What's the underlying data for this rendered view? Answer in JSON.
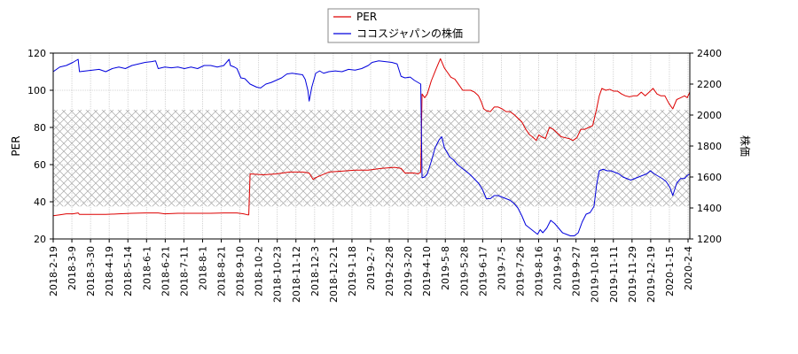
{
  "chart_data": {
    "type": "line",
    "x_tick_labels": [
      "2018-2-19",
      "2018-3-9",
      "2018-3-30",
      "2018-4-19",
      "2018-5-14",
      "2018-6-1",
      "2018-6-21",
      "2018-7-11",
      "2018-8-1",
      "2018-8-21",
      "2018-9-10",
      "2018-10-2",
      "2018-10-23",
      "2018-11-12",
      "2018-12-3",
      "2018-12-21",
      "2019-1-18",
      "2019-2-7",
      "2019-2-28",
      "2019-3-20",
      "2019-4-10",
      "2019-5-8",
      "2019-5-28",
      "2019-6-17",
      "2019-7-5",
      "2019-7-26",
      "2019-8-16",
      "2019-9-5",
      "2019-9-27",
      "2019-10-18",
      "2019-11-11",
      "2019-11-29",
      "2019-12-19",
      "2020-1-15",
      "2020-2-4"
    ],
    "y_left": {
      "label": "PER",
      "ylim": [
        20,
        120
      ],
      "ticks": [
        20,
        40,
        60,
        80,
        100,
        120
      ]
    },
    "y_right": {
      "label": "株価",
      "ylim": [
        1200,
        2400
      ],
      "ticks": [
        1200,
        1400,
        1600,
        1800,
        2000,
        2200,
        2400
      ]
    },
    "shaded_band": {
      "axis": "left",
      "from": 37.5,
      "to": 89.5,
      "pattern": "crosshatch"
    },
    "legend_position": "top-center",
    "grid": true,
    "series": [
      {
        "name": "PER",
        "axis": "left",
        "color": "#dd0000",
        "points": [
          [
            0,
            32.5
          ],
          [
            5,
            33
          ],
          [
            10,
            33.5
          ],
          [
            15,
            33.5
          ],
          [
            19,
            34
          ],
          [
            20,
            33.2
          ],
          [
            30,
            33.2
          ],
          [
            40,
            33.2
          ],
          [
            50,
            33.5
          ],
          [
            60,
            33.8
          ],
          [
            70,
            34
          ],
          [
            80,
            34
          ],
          [
            85,
            33.5
          ],
          [
            95,
            33.8
          ],
          [
            110,
            33.8
          ],
          [
            120,
            33.8
          ],
          [
            130,
            34
          ],
          [
            140,
            34
          ],
          [
            145,
            33.5
          ],
          [
            148,
            33
          ],
          [
            149,
            33
          ],
          [
            150,
            55
          ],
          [
            160,
            54.5
          ],
          [
            170,
            55
          ],
          [
            180,
            56
          ],
          [
            190,
            56
          ],
          [
            195,
            55.5
          ],
          [
            198,
            52
          ],
          [
            200,
            53
          ],
          [
            210,
            56
          ],
          [
            220,
            56.5
          ],
          [
            230,
            57
          ],
          [
            240,
            57
          ],
          [
            250,
            58
          ],
          [
            260,
            58.5
          ],
          [
            265,
            58
          ],
          [
            268,
            55.5
          ],
          [
            275,
            55.5
          ],
          [
            278,
            55
          ],
          [
            280,
            56
          ],
          [
            281,
            98
          ],
          [
            283,
            96
          ],
          [
            285,
            98
          ],
          [
            288,
            105
          ],
          [
            292,
            112
          ],
          [
            295,
            117
          ],
          [
            298,
            112
          ],
          [
            300,
            110
          ],
          [
            303,
            107
          ],
          [
            306,
            106
          ],
          [
            309,
            103
          ],
          [
            312,
            100
          ],
          [
            318,
            100
          ],
          [
            321,
            99
          ],
          [
            324,
            97
          ],
          [
            326,
            94
          ],
          [
            328,
            90
          ],
          [
            330,
            89
          ],
          [
            333,
            88.5
          ],
          [
            336,
            91
          ],
          [
            339,
            91
          ],
          [
            342,
            90
          ],
          [
            345,
            88.5
          ],
          [
            348,
            88.5
          ],
          [
            351,
            87
          ],
          [
            354,
            85
          ],
          [
            357,
            83
          ],
          [
            360,
            79
          ],
          [
            363,
            76
          ],
          [
            365,
            75
          ],
          [
            368,
            73
          ],
          [
            370,
            76
          ],
          [
            372,
            75
          ],
          [
            375,
            74
          ],
          [
            378,
            80
          ],
          [
            381,
            79
          ],
          [
            384,
            77
          ],
          [
            387,
            75
          ],
          [
            390,
            74.5
          ],
          [
            393,
            74
          ],
          [
            396,
            73
          ],
          [
            399,
            74.5
          ],
          [
            402,
            79
          ],
          [
            405,
            79
          ],
          [
            408,
            80
          ],
          [
            411,
            81
          ],
          [
            414,
            90
          ],
          [
            416,
            97
          ],
          [
            418,
            101
          ],
          [
            421,
            100
          ],
          [
            424,
            100.5
          ],
          [
            427,
            99.5
          ],
          [
            430,
            99.5
          ],
          [
            433,
            98
          ],
          [
            436,
            97
          ],
          [
            439,
            96.5
          ],
          [
            442,
            97
          ],
          [
            445,
            97
          ],
          [
            448,
            99
          ],
          [
            451,
            97
          ],
          [
            454,
            99
          ],
          [
            457,
            101
          ],
          [
            460,
            98
          ],
          [
            463,
            97
          ],
          [
            466,
            97
          ],
          [
            469,
            93
          ],
          [
            472,
            90
          ],
          [
            475,
            95
          ],
          [
            478,
            96
          ],
          [
            481,
            97
          ],
          [
            483,
            96
          ],
          [
            485,
            99
          ]
        ]
      },
      {
        "name": "ココスジャパンの株価",
        "axis": "right",
        "color": "#0000dd",
        "points": [
          [
            0,
            2280
          ],
          [
            5,
            2310
          ],
          [
            10,
            2320
          ],
          [
            15,
            2340
          ],
          [
            19,
            2360
          ],
          [
            20,
            2280
          ],
          [
            25,
            2285
          ],
          [
            30,
            2290
          ],
          [
            35,
            2295
          ],
          [
            40,
            2280
          ],
          [
            45,
            2300
          ],
          [
            50,
            2310
          ],
          [
            55,
            2300
          ],
          [
            60,
            2320
          ],
          [
            65,
            2330
          ],
          [
            70,
            2340
          ],
          [
            75,
            2345
          ],
          [
            78,
            2350
          ],
          [
            80,
            2300
          ],
          [
            85,
            2310
          ],
          [
            90,
            2305
          ],
          [
            95,
            2310
          ],
          [
            100,
            2300
          ],
          [
            105,
            2310
          ],
          [
            110,
            2300
          ],
          [
            115,
            2320
          ],
          [
            120,
            2320
          ],
          [
            125,
            2310
          ],
          [
            130,
            2320
          ],
          [
            134,
            2360
          ],
          [
            135,
            2320
          ],
          [
            138,
            2310
          ],
          [
            140,
            2300
          ],
          [
            143,
            2240
          ],
          [
            146,
            2235
          ],
          [
            150,
            2200
          ],
          [
            155,
            2180
          ],
          [
            158,
            2175
          ],
          [
            162,
            2200
          ],
          [
            166,
            2210
          ],
          [
            170,
            2225
          ],
          [
            174,
            2240
          ],
          [
            178,
            2265
          ],
          [
            182,
            2270
          ],
          [
            186,
            2265
          ],
          [
            190,
            2260
          ],
          [
            192,
            2230
          ],
          [
            194,
            2160
          ],
          [
            195,
            2090
          ],
          [
            197,
            2180
          ],
          [
            200,
            2270
          ],
          [
            203,
            2285
          ],
          [
            206,
            2270
          ],
          [
            210,
            2280
          ],
          [
            215,
            2285
          ],
          [
            220,
            2280
          ],
          [
            225,
            2295
          ],
          [
            230,
            2290
          ],
          [
            235,
            2300
          ],
          [
            240,
            2320
          ],
          [
            243,
            2340
          ],
          [
            248,
            2350
          ],
          [
            253,
            2345
          ],
          [
            258,
            2340
          ],
          [
            262,
            2330
          ],
          [
            265,
            2250
          ],
          [
            268,
            2240
          ],
          [
            272,
            2245
          ],
          [
            275,
            2225
          ],
          [
            278,
            2210
          ],
          [
            280,
            2200
          ],
          [
            281,
            1595
          ],
          [
            283,
            1600
          ],
          [
            285,
            1620
          ],
          [
            288,
            1700
          ],
          [
            291,
            1790
          ],
          [
            294,
            1840
          ],
          [
            296,
            1860
          ],
          [
            298,
            1790
          ],
          [
            300,
            1760
          ],
          [
            302,
            1730
          ],
          [
            305,
            1710
          ],
          [
            308,
            1680
          ],
          [
            311,
            1660
          ],
          [
            314,
            1640
          ],
          [
            317,
            1620
          ],
          [
            320,
            1595
          ],
          [
            324,
            1560
          ],
          [
            327,
            1520
          ],
          [
            330,
            1460
          ],
          [
            333,
            1460
          ],
          [
            336,
            1480
          ],
          [
            339,
            1480
          ],
          [
            342,
            1470
          ],
          [
            345,
            1460
          ],
          [
            348,
            1450
          ],
          [
            351,
            1430
          ],
          [
            354,
            1400
          ],
          [
            357,
            1350
          ],
          [
            360,
            1290
          ],
          [
            363,
            1270
          ],
          [
            366,
            1250
          ],
          [
            369,
            1230
          ],
          [
            371,
            1260
          ],
          [
            373,
            1240
          ],
          [
            376,
            1270
          ],
          [
            379,
            1320
          ],
          [
            382,
            1300
          ],
          [
            385,
            1270
          ],
          [
            388,
            1240
          ],
          [
            391,
            1230
          ],
          [
            394,
            1220
          ],
          [
            397,
            1220
          ],
          [
            400,
            1240
          ],
          [
            403,
            1310
          ],
          [
            406,
            1360
          ],
          [
            409,
            1370
          ],
          [
            412,
            1410
          ],
          [
            414,
            1550
          ],
          [
            416,
            1640
          ],
          [
            419,
            1650
          ],
          [
            422,
            1640
          ],
          [
            425,
            1640
          ],
          [
            428,
            1630
          ],
          [
            431,
            1620
          ],
          [
            434,
            1600
          ],
          [
            437,
            1590
          ],
          [
            440,
            1580
          ],
          [
            443,
            1590
          ],
          [
            446,
            1600
          ],
          [
            449,
            1610
          ],
          [
            452,
            1620
          ],
          [
            455,
            1640
          ],
          [
            458,
            1620
          ],
          [
            461,
            1605
          ],
          [
            464,
            1590
          ],
          [
            467,
            1570
          ],
          [
            470,
            1530
          ],
          [
            472,
            1480
          ],
          [
            475,
            1560
          ],
          [
            478,
            1590
          ],
          [
            481,
            1590
          ],
          [
            483,
            1610
          ],
          [
            485,
            1620
          ]
        ]
      }
    ]
  }
}
